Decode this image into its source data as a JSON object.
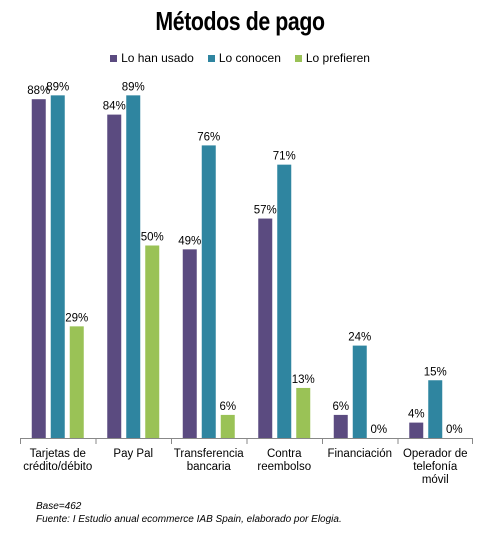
{
  "chart_data": {
    "type": "bar",
    "title": "Métodos de pago",
    "categories": [
      [
        "Tarjetas de",
        "crédito/débito"
      ],
      [
        "Pay Pal"
      ],
      [
        "Transferencia",
        "bancaria"
      ],
      [
        "Contra",
        "reembolso"
      ],
      [
        "Financiación"
      ],
      [
        "Operador de",
        "telefonía",
        "móvil"
      ]
    ],
    "series": [
      {
        "name": "Lo han usado",
        "color": "#5b4b80",
        "values": [
          88,
          84,
          49,
          57,
          6,
          4
        ]
      },
      {
        "name": "Lo conocen",
        "color": "#2f85a0",
        "values": [
          89,
          89,
          76,
          71,
          24,
          15
        ]
      },
      {
        "name": "Lo prefieren",
        "color": "#9ac256",
        "values": [
          29,
          50,
          6,
          13,
          0,
          0
        ]
      }
    ],
    "value_suffix": "%",
    "ylim": [
      0,
      100
    ],
    "grid": false,
    "legend_position": "top"
  },
  "footnote": {
    "base": "Base=462",
    "source": "Fuente: I Estudio anual ecommerce IAB Spain, elaborado por Elogia."
  }
}
